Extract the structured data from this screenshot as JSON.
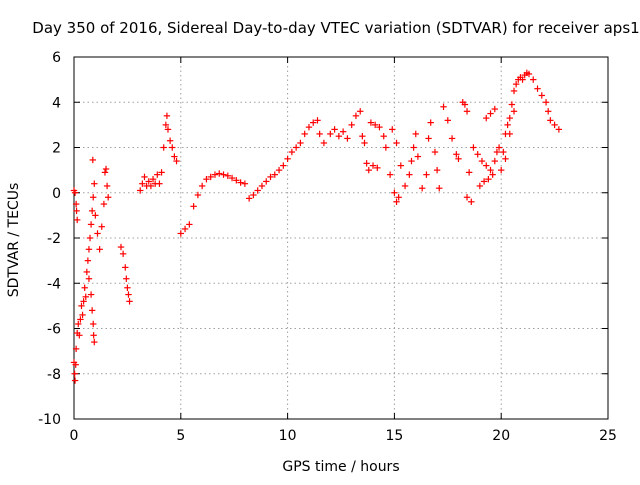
{
  "chart_data": {
    "type": "scatter",
    "title": "Day 350 of 2016, Sidereal Day-to-day VTEC variation (SDTVAR) for receiver aps1",
    "xlabel": "GPS time / hours",
    "ylabel": "SDTVAR / TECUs",
    "xlim": [
      0,
      25
    ],
    "ylim": [
      -10,
      6
    ],
    "xticks": [
      0,
      5,
      10,
      15,
      20,
      25
    ],
    "yticks": [
      -10,
      -8,
      -6,
      -4,
      -2,
      0,
      2,
      4,
      6
    ],
    "grid": true,
    "marker": "+",
    "color": "#ff0000",
    "series": [
      {
        "name": "SDTVAR",
        "points": [
          [
            0.0,
            0.1
          ],
          [
            0.05,
            0.0
          ],
          [
            0.1,
            -0.5
          ],
          [
            0.12,
            -0.8
          ],
          [
            0.15,
            -1.2
          ],
          [
            0.0,
            -7.5
          ],
          [
            0.03,
            -8.0
          ],
          [
            0.05,
            -8.3
          ],
          [
            0.08,
            -7.6
          ],
          [
            0.1,
            -6.9
          ],
          [
            0.15,
            -6.2
          ],
          [
            0.2,
            -5.8
          ],
          [
            0.25,
            -6.3
          ],
          [
            0.3,
            -5.6
          ],
          [
            0.35,
            -5.0
          ],
          [
            0.4,
            -5.4
          ],
          [
            0.45,
            -4.8
          ],
          [
            0.5,
            -4.2
          ],
          [
            0.55,
            -4.6
          ],
          [
            0.6,
            -3.5
          ],
          [
            0.65,
            -3.0
          ],
          [
            0.7,
            -2.5
          ],
          [
            0.75,
            -2.0
          ],
          [
            0.8,
            -1.4
          ],
          [
            0.85,
            -0.8
          ],
          [
            0.9,
            -0.2
          ],
          [
            0.95,
            0.4
          ],
          [
            0.88,
            1.45
          ],
          [
            0.9,
            -5.8
          ],
          [
            0.92,
            -6.3
          ],
          [
            0.95,
            -6.6
          ],
          [
            0.85,
            -5.2
          ],
          [
            0.8,
            -4.5
          ],
          [
            0.7,
            -3.8
          ],
          [
            1.0,
            -1.0
          ],
          [
            1.1,
            -1.8
          ],
          [
            1.2,
            -2.5
          ],
          [
            1.3,
            -1.5
          ],
          [
            1.4,
            -0.5
          ],
          [
            1.45,
            0.9
          ],
          [
            1.5,
            1.05
          ],
          [
            1.55,
            0.3
          ],
          [
            1.6,
            -0.2
          ],
          [
            2.2,
            -2.4
          ],
          [
            2.3,
            -2.7
          ],
          [
            2.4,
            -3.3
          ],
          [
            2.45,
            -3.8
          ],
          [
            2.5,
            -4.2
          ],
          [
            2.55,
            -4.5
          ],
          [
            2.6,
            -4.8
          ],
          [
            3.1,
            0.1
          ],
          [
            3.2,
            0.4
          ],
          [
            3.3,
            0.7
          ],
          [
            3.4,
            0.3
          ],
          [
            3.5,
            0.5
          ],
          [
            3.6,
            0.3
          ],
          [
            3.7,
            0.6
          ],
          [
            3.8,
            0.4
          ],
          [
            3.9,
            0.8
          ],
          [
            4.0,
            0.4
          ],
          [
            4.1,
            0.9
          ],
          [
            4.2,
            2.0
          ],
          [
            4.3,
            3.0
          ],
          [
            4.35,
            3.4
          ],
          [
            4.4,
            2.8
          ],
          [
            4.5,
            2.3
          ],
          [
            4.6,
            2.0
          ],
          [
            4.7,
            1.6
          ],
          [
            4.8,
            1.4
          ],
          [
            5.0,
            -1.8
          ],
          [
            5.2,
            -1.6
          ],
          [
            5.4,
            -1.4
          ],
          [
            5.6,
            -0.6
          ],
          [
            5.8,
            -0.1
          ],
          [
            6.0,
            0.3
          ],
          [
            6.2,
            0.6
          ],
          [
            6.4,
            0.7
          ],
          [
            6.6,
            0.8
          ],
          [
            6.8,
            0.85
          ],
          [
            7.0,
            0.8
          ],
          [
            7.2,
            0.75
          ],
          [
            7.4,
            0.65
          ],
          [
            7.6,
            0.55
          ],
          [
            7.8,
            0.45
          ],
          [
            8.0,
            0.4
          ],
          [
            8.2,
            -0.25
          ],
          [
            8.4,
            -0.1
          ],
          [
            8.6,
            0.1
          ],
          [
            8.8,
            0.3
          ],
          [
            9.0,
            0.5
          ],
          [
            9.2,
            0.7
          ],
          [
            9.4,
            0.8
          ],
          [
            9.6,
            1.0
          ],
          [
            9.8,
            1.2
          ],
          [
            10.0,
            1.5
          ],
          [
            10.2,
            1.8
          ],
          [
            10.4,
            2.0
          ],
          [
            10.6,
            2.2
          ],
          [
            10.8,
            2.6
          ],
          [
            11.0,
            2.9
          ],
          [
            11.2,
            3.1
          ],
          [
            11.4,
            3.2
          ],
          [
            11.5,
            2.6
          ],
          [
            11.7,
            2.2
          ],
          [
            12.0,
            2.6
          ],
          [
            12.2,
            2.8
          ],
          [
            12.4,
            2.5
          ],
          [
            12.6,
            2.7
          ],
          [
            12.8,
            2.4
          ],
          [
            13.0,
            3.0
          ],
          [
            13.2,
            3.4
          ],
          [
            13.4,
            3.6
          ],
          [
            13.5,
            2.5
          ],
          [
            13.6,
            2.2
          ],
          [
            13.7,
            1.3
          ],
          [
            13.8,
            1.0
          ],
          [
            14.0,
            1.2
          ],
          [
            14.2,
            1.1
          ],
          [
            13.9,
            3.1
          ],
          [
            14.1,
            3.0
          ],
          [
            14.3,
            2.9
          ],
          [
            14.5,
            2.5
          ],
          [
            14.6,
            2.0
          ],
          [
            14.8,
            0.8
          ],
          [
            15.0,
            0.0
          ],
          [
            15.1,
            -0.4
          ],
          [
            15.2,
            -0.2
          ],
          [
            14.9,
            2.8
          ],
          [
            15.1,
            2.2
          ],
          [
            15.3,
            1.2
          ],
          [
            15.5,
            0.3
          ],
          [
            15.7,
            0.8
          ],
          [
            15.8,
            1.4
          ],
          [
            15.9,
            2.0
          ],
          [
            16.0,
            2.6
          ],
          [
            16.1,
            1.6
          ],
          [
            16.3,
            0.2
          ],
          [
            16.5,
            0.8
          ],
          [
            16.6,
            2.4
          ],
          [
            16.7,
            3.1
          ],
          [
            16.9,
            1.8
          ],
          [
            17.0,
            1.0
          ],
          [
            17.1,
            0.2
          ],
          [
            17.3,
            3.8
          ],
          [
            17.5,
            3.2
          ],
          [
            17.7,
            2.4
          ],
          [
            17.9,
            1.7
          ],
          [
            18.0,
            1.5
          ],
          [
            18.2,
            4.0
          ],
          [
            18.3,
            3.9
          ],
          [
            18.4,
            3.6
          ],
          [
            18.5,
            0.9
          ],
          [
            18.4,
            -0.2
          ],
          [
            18.6,
            -0.4
          ],
          [
            18.7,
            2.0
          ],
          [
            18.9,
            1.7
          ],
          [
            19.1,
            1.4
          ],
          [
            19.3,
            1.2
          ],
          [
            19.5,
            1.0
          ],
          [
            19.7,
            1.4
          ],
          [
            19.8,
            1.8
          ],
          [
            19.9,
            2.0
          ],
          [
            19.0,
            0.3
          ],
          [
            19.2,
            0.5
          ],
          [
            19.4,
            0.6
          ],
          [
            19.6,
            0.8
          ],
          [
            19.3,
            3.3
          ],
          [
            19.5,
            3.5
          ],
          [
            19.7,
            3.7
          ],
          [
            20.0,
            1.0
          ],
          [
            20.1,
            1.8
          ],
          [
            20.2,
            2.6
          ],
          [
            20.3,
            3.0
          ],
          [
            20.4,
            3.3
          ],
          [
            20.5,
            3.9
          ],
          [
            20.6,
            4.5
          ],
          [
            20.7,
            4.8
          ],
          [
            20.8,
            5.0
          ],
          [
            20.9,
            5.1
          ],
          [
            21.0,
            5.0
          ],
          [
            21.1,
            5.2
          ],
          [
            21.2,
            5.3
          ],
          [
            21.3,
            5.25
          ],
          [
            21.5,
            5.0
          ],
          [
            21.7,
            4.6
          ],
          [
            21.9,
            4.3
          ],
          [
            22.1,
            4.0
          ],
          [
            22.2,
            3.6
          ],
          [
            22.3,
            3.2
          ],
          [
            22.5,
            3.0
          ],
          [
            22.7,
            2.8
          ],
          [
            20.2,
            1.5
          ],
          [
            20.4,
            2.6
          ],
          [
            20.6,
            3.6
          ]
        ]
      }
    ]
  }
}
